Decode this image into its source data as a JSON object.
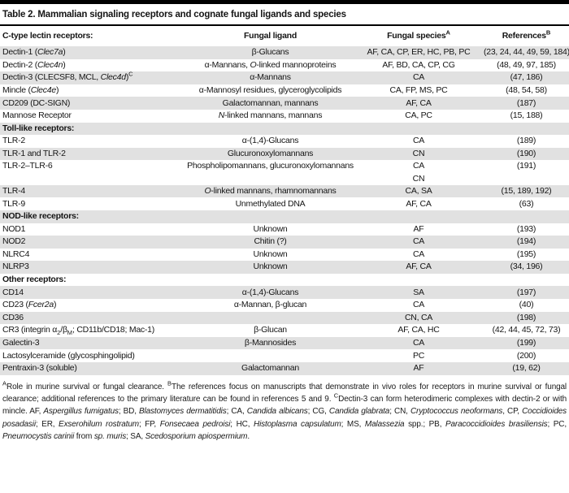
{
  "title": "Table 2. Mammalian signaling receptors and cognate fungal ligands and species",
  "colors": {
    "row_stripe": "#e1e1e1",
    "rule": "#000000",
    "text": "#151515"
  },
  "table": {
    "columns": [
      "C-type lectin receptors:",
      "Fungal ligand",
      "Fungal species^A^",
      "References^B^"
    ],
    "rows": [
      {
        "receptor": "Dectin-1 (*Clec7a*)",
        "ligand": "β-Glucans",
        "species": "AF, CA, CP, ER, HC, PB, PC",
        "refs": "(23, 24, 44, 49, 59, 184)"
      },
      {
        "receptor": "Dectin-2 (*Clec4n*)",
        "ligand": "α-Mannans, *O*-linked mannoproteins",
        "species": "AF, BD, CA, CP, CG",
        "refs": "(48, 49, 97, 185)"
      },
      {
        "receptor": "Dectin-3 (CLECSF8, MCL, *Clec4d*)^C^",
        "ligand": "α-Mannans",
        "species": "CA",
        "refs": "(47, 186)"
      },
      {
        "receptor": "Mincle (*Clec4e*)",
        "ligand": "α-Mannosyl residues, glyceroglycolipids",
        "species": "CA, FP, MS, PC",
        "refs": "(48, 54, 58)"
      },
      {
        "receptor": "CD209 (DC-SIGN)",
        "ligand": "Galactomannan, mannans",
        "species": "AF, CA",
        "refs": "(187)"
      },
      {
        "receptor": "Mannose Receptor",
        "ligand": "*N*-linked mannans, mannans",
        "species": "CA, PC",
        "refs": "(15, 188)"
      },
      {
        "section": "Toll-like receptors:"
      },
      {
        "receptor": "TLR-2",
        "ligand": "α-(1,4)-Glucans",
        "species": "CA",
        "refs": "(189)"
      },
      {
        "receptor": "TLR-1 and TLR-2",
        "ligand": "Glucuronoxylomannans",
        "species": "CN",
        "refs": "(190)"
      },
      {
        "receptor": "TLR-2–TLR-6",
        "ligand": "Phospholipomannans, glucuronoxylomannans",
        "species": "CA\nCN",
        "refs": "(191)"
      },
      {
        "receptor": "TLR-4",
        "ligand": "*O*-linked mannans, rhamnomannans",
        "species": "CA, SA",
        "refs": "(15, 189, 192)"
      },
      {
        "receptor": "TLR-9",
        "ligand": "Unmethylated DNA",
        "species": "AF, CA",
        "refs": "(63)"
      },
      {
        "section": "NOD-like receptors:"
      },
      {
        "receptor": "NOD1",
        "ligand": "Unknown",
        "species": "AF",
        "refs": "(193)"
      },
      {
        "receptor": "NOD2",
        "ligand": "Chitin (?)",
        "species": "CA",
        "refs": "(194)"
      },
      {
        "receptor": "NLRC4",
        "ligand": "Unknown",
        "species": "CA",
        "refs": "(195)"
      },
      {
        "receptor": "NLRP3",
        "ligand": "Unknown",
        "species": "AF, CA",
        "refs": "(34, 196)"
      },
      {
        "section": "Other receptors:"
      },
      {
        "receptor": "CD14",
        "ligand": "α-(1,4)-Glucans",
        "species": "SA",
        "refs": "(197)"
      },
      {
        "receptor": "CD23 (*Fcer2a*)",
        "ligand": "α-Mannan, β-glucan",
        "species": "CA",
        "refs": "(40)"
      },
      {
        "receptor": "CD36",
        "ligand": "",
        "species": "CN, CA",
        "refs": "(198)"
      },
      {
        "receptor": "CR3 (integrin α~2~/β~M~; CD11b/CD18; Mac-1)",
        "ligand": "β-Glucan",
        "species": "AF, CA, HC",
        "refs": "(42, 44, 45, 72, 73)"
      },
      {
        "receptor": "Galectin-3",
        "ligand": "β-Mannosides",
        "species": "CA",
        "refs": "(199)"
      },
      {
        "receptor": "Lactosylceramide (glycosphingolipid)",
        "ligand": "",
        "species": "PC",
        "refs": "(200)"
      },
      {
        "receptor": "Pentraxin-3 (soluble)",
        "ligand": "Galactomannan",
        "species": "AF",
        "refs": "(19, 62)"
      }
    ]
  },
  "footnotes": "^A^Role in murine survival or fungal clearance. ^B^The references focus on manuscripts that demonstrate in vivo roles for receptors in murine survival or fungal clearance; additional references to the primary literature can be found in references 5 and 9. ^C^Dectin-3 can form heterodimeric complexes with dectin-2 or with mincle. AF, *Aspergillus fumigatus*; BD, *Blastomyces dermatitidis*; CA, *Candida albicans*; CG, *Candida glabrata*; CN, *Cryptococcus neoformans*, CP, *Coccidioides posadasii*; ER, *Exserohilum rostratum*; FP, *Fonsecaea pedroisi*; HC, *Histoplasma capsulatum*; MS, *Malassezia* spp.; PB, *Paracoccidioides brasiliensis*; PC, *Pneumocystis carinii* from *sp. muris*; SA, *Scedosporium apiospermium*."
}
